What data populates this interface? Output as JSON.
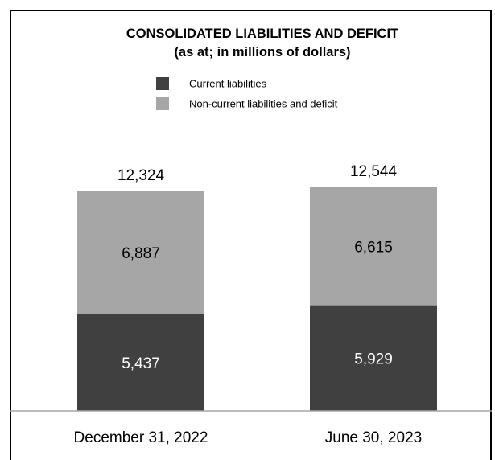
{
  "chart_data": {
    "type": "bar",
    "stacked": true,
    "title": "CONSOLIDATED LIABILITIES AND DEFICIT",
    "subtitle": "(as at; in millions of dollars)",
    "categories": [
      "December 31, 2022",
      "June 30, 2023"
    ],
    "series": [
      {
        "name": "Current liabilities",
        "values": [
          5437,
          5929
        ],
        "labels": [
          "5,437",
          "5,929"
        ],
        "color": "#404040",
        "label_color": "#ffffff"
      },
      {
        "name": "Non-current liabilities and deficit",
        "values": [
          6887,
          6615
        ],
        "labels": [
          "6,887",
          "6,615"
        ],
        "color": "#a6a6a6",
        "label_color": "#000000"
      }
    ],
    "totals": [
      12324,
      12544
    ],
    "total_labels": [
      "12,324",
      "12,544"
    ],
    "legend_position": "top-center",
    "ylim": [
      0,
      12544
    ],
    "grid": false
  }
}
